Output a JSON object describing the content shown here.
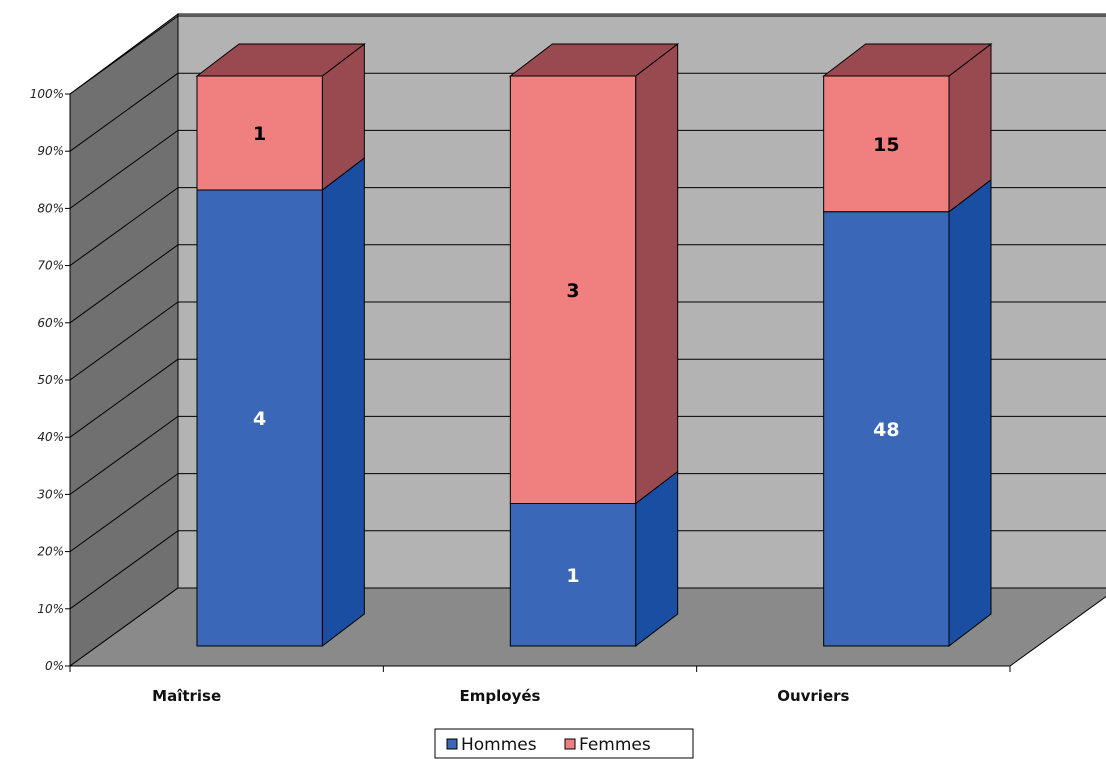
{
  "chart_data": {
    "type": "bar",
    "stacked": true,
    "normalized": true,
    "categories": [
      "Maîtrise",
      "Employés",
      "Ouvriers"
    ],
    "series": [
      {
        "name": "Hommes",
        "values": [
          4,
          1,
          48
        ],
        "color": "#3a67b8",
        "side_color": "#1a4ea3"
      },
      {
        "name": "Femmes",
        "values": [
          1,
          3,
          15
        ],
        "color": "#f07f7f",
        "side_color": "#984a50"
      }
    ],
    "y_ticks": [
      "0%",
      "10%",
      "20%",
      "30%",
      "40%",
      "50%",
      "60%",
      "70%",
      "80%",
      "90%",
      "100%"
    ],
    "ylim": [
      0,
      100
    ],
    "grid": true,
    "legend_position": "bottom",
    "colors": {
      "back_wall": "#b3b3b3",
      "side_wall": "#707070",
      "floor": "#8a8a8a",
      "grid_line": "#000000",
      "label_on_dark": "#ffffff",
      "label_on_light": "#000000"
    }
  }
}
